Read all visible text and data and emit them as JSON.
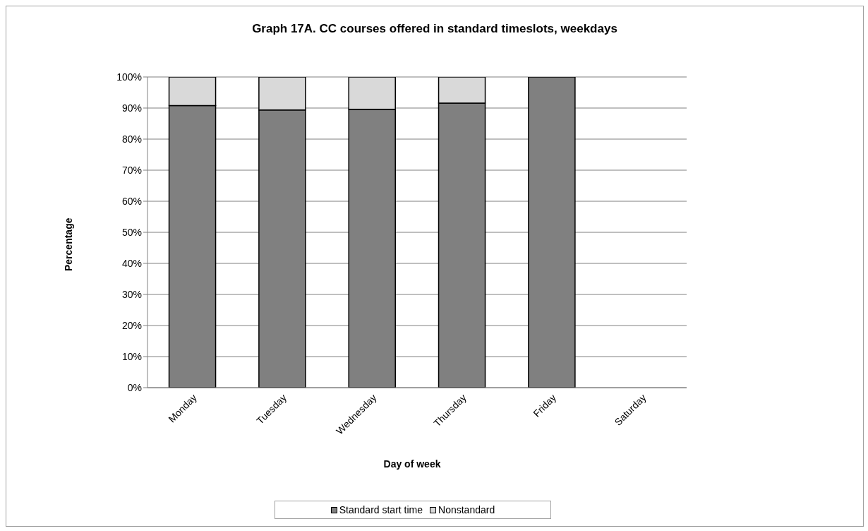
{
  "chart_data": {
    "type": "bar",
    "stacked": true,
    "title": "Graph 17A. CC courses offered in standard timeslots, weekdays",
    "xlabel": "Day of week",
    "ylabel": "Percentage",
    "categories": [
      "Monday",
      "Tuesday",
      "Wednesday",
      "Thursday",
      "Friday",
      "Saturday"
    ],
    "series": [
      {
        "name": "Standard start time",
        "color": "#808080",
        "values": [
          90.8,
          89.4,
          89.6,
          91.6,
          100,
          null
        ]
      },
      {
        "name": "Nonstandard",
        "color": "#d9d9d9",
        "values": [
          9.2,
          10.6,
          10.4,
          8.4,
          0,
          null
        ]
      }
    ],
    "ylim": [
      0,
      100
    ],
    "yticks": [
      {
        "value": 0,
        "label": "0%"
      },
      {
        "value": 10,
        "label": "10%"
      },
      {
        "value": 20,
        "label": "20%"
      },
      {
        "value": 30,
        "label": "30%"
      },
      {
        "value": 40,
        "label": "40%"
      },
      {
        "value": 50,
        "label": "50%"
      },
      {
        "value": 60,
        "label": "60%"
      },
      {
        "value": 70,
        "label": "70%"
      },
      {
        "value": 80,
        "label": "80%"
      },
      {
        "value": 90,
        "label": "90%"
      },
      {
        "value": 100,
        "label": "100%"
      }
    ],
    "grid": "y",
    "legend": "bottom"
  }
}
